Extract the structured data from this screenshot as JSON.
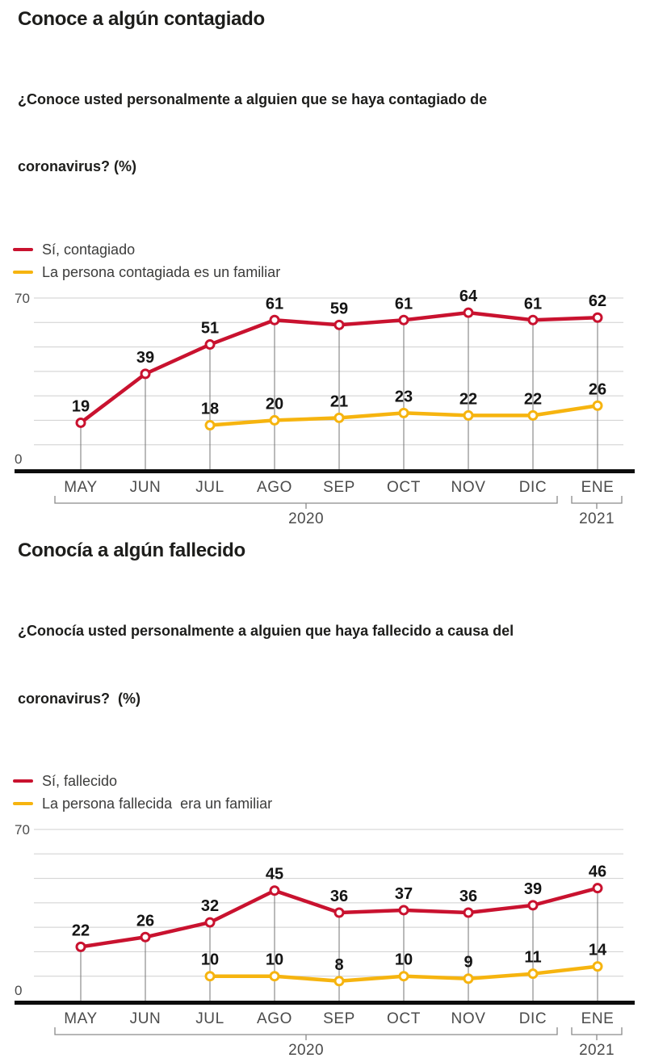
{
  "colors": {
    "red": "#C9122F",
    "yellow": "#F6B40F",
    "text_dark": "#1D1D1B",
    "text_gray": "#4B4B4B",
    "grid": "#CFCFCF",
    "dropline": "#757575",
    "bracket": "#8A8A8A",
    "baseline": "#0D0D0D"
  },
  "sections": [
    {
      "title": "Conoce a algún contagiado",
      "subtitle_line1": "¿Conoce usted personalmente a alguien que se haya contagiado de",
      "subtitle_line2": "coronavirus? (%)",
      "legend": [
        {
          "label": "Sí, contagiado",
          "color": "red"
        },
        {
          "label": "La persona contagiada es un familiar",
          "color": "yellow"
        }
      ]
    },
    {
      "title": "Conocía a algún fallecido",
      "subtitle_line1": "¿Conocía usted personalmente a alguien que haya fallecido a causa del",
      "subtitle_line2": "coronavirus?  (%)",
      "legend": [
        {
          "label": "Sí, fallecido",
          "color": "red"
        },
        {
          "label": "La persona fallecida  era un familiar",
          "color": "yellow"
        }
      ]
    }
  ],
  "axis": {
    "y_top_label": "70",
    "y_bottom_label": "0"
  },
  "chart_data": [
    {
      "type": "line",
      "title": "Conoce a algún contagiado",
      "ylabel": "%",
      "ylim": [
        0,
        70
      ],
      "grid_step": 10,
      "grid": true,
      "categories": [
        "MAY",
        "JUN",
        "JUL",
        "AGO",
        "SEP",
        "OCT",
        "NOV",
        "DIC",
        "ENE"
      ],
      "year_groups": [
        {
          "label": "2020",
          "from": "MAY",
          "to": "DIC"
        },
        {
          "label": "2021",
          "from": "ENE",
          "to": "ENE"
        }
      ],
      "series": [
        {
          "name": "Sí, contagiado",
          "color": "red",
          "values": [
            19,
            39,
            51,
            61,
            59,
            61,
            64,
            61,
            62
          ]
        },
        {
          "name": "La persona contagiada es un familiar",
          "color": "yellow",
          "values": [
            null,
            null,
            18,
            20,
            21,
            23,
            22,
            22,
            26
          ]
        }
      ]
    },
    {
      "type": "line",
      "title": "Conocía a algún fallecido",
      "ylabel": "%",
      "ylim": [
        0,
        70
      ],
      "grid_step": 10,
      "grid": true,
      "categories": [
        "MAY",
        "JUN",
        "JUL",
        "AGO",
        "SEP",
        "OCT",
        "NOV",
        "DIC",
        "ENE"
      ],
      "year_groups": [
        {
          "label": "2020",
          "from": "MAY",
          "to": "DIC"
        },
        {
          "label": "2021",
          "from": "ENE",
          "to": "ENE"
        }
      ],
      "series": [
        {
          "name": "Sí, fallecido",
          "color": "red",
          "values": [
            22,
            26,
            32,
            45,
            36,
            37,
            36,
            39,
            46
          ]
        },
        {
          "name": "La persona fallecida era un familiar",
          "color": "yellow",
          "values": [
            null,
            null,
            10,
            10,
            8,
            10,
            9,
            11,
            14
          ]
        }
      ]
    }
  ]
}
